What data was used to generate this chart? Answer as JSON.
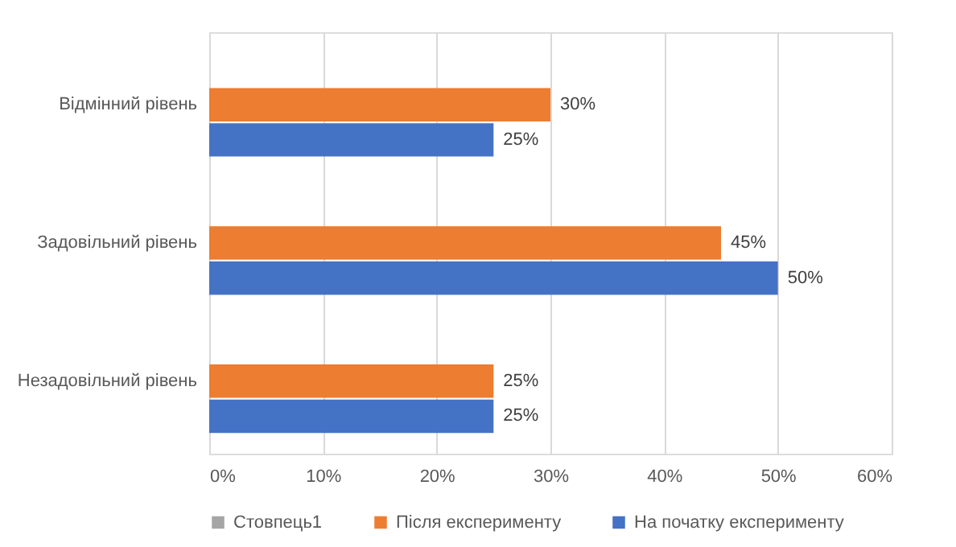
{
  "chart_data": {
    "type": "bar",
    "orientation": "horizontal",
    "categories": [
      "Відмінний рівень",
      "Задовільний рівень",
      "Незадовільний рівень"
    ],
    "series": [
      {
        "name": "Стовпець1",
        "color": "#a5a5a5",
        "values": [
          null,
          null,
          null
        ]
      },
      {
        "name": "Після експерименту",
        "color": "#ed7d31",
        "values": [
          30,
          45,
          25
        ],
        "value_labels": [
          "30%",
          "45%",
          "25%"
        ]
      },
      {
        "name": "На початку експерименту",
        "color": "#4472c4",
        "values": [
          25,
          50,
          25
        ],
        "value_labels": [
          "25%",
          "50%",
          "25%"
        ]
      }
    ],
    "xlim": [
      0,
      60
    ],
    "xticks": [
      {
        "value": 0,
        "label": "0%"
      },
      {
        "value": 10,
        "label": "10%"
      },
      {
        "value": 20,
        "label": "20%"
      },
      {
        "value": 30,
        "label": "30%"
      },
      {
        "value": 40,
        "label": "40%"
      },
      {
        "value": 50,
        "label": "50%"
      },
      {
        "value": 60,
        "label": "60%"
      }
    ],
    "grid": "x",
    "legend": "bottom"
  }
}
